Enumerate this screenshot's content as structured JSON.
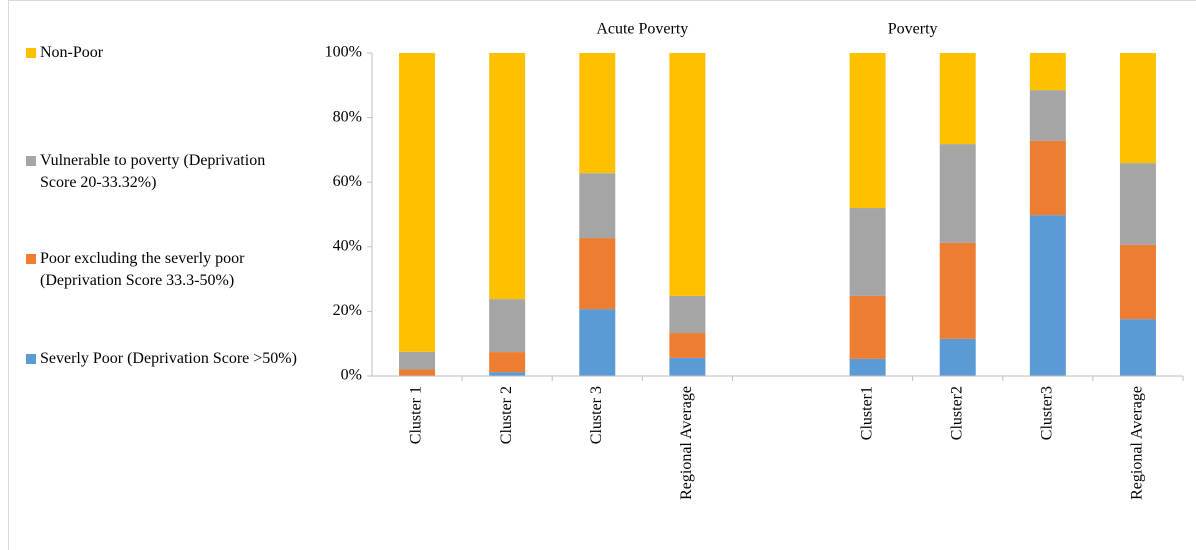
{
  "chart_data": {
    "type": "stacked_bar",
    "annotations": [
      {
        "text": "Acute Poverty",
        "category_index": 2.5
      },
      {
        "text": "Poverty",
        "category_index": 5.5
      }
    ],
    "categories": [
      "Cluster 1",
      "Cluster 2",
      "Cluster 3",
      "Regional Average",
      null,
      "Cluster1",
      "Cluster2",
      "Cluster3",
      "Regional Average"
    ],
    "series": [
      {
        "name": "Severly Poor (Deprivation Score >50%)",
        "color": "#5b9bd5",
        "values": [
          0,
          1.2,
          20.7,
          5.6,
          null,
          5.3,
          11.5,
          49.8,
          17.6
        ]
      },
      {
        "name": "Poor excluding the severly poor (Deprivation Score 33.3-50%)",
        "color": "#ed7d31",
        "values": [
          2,
          6.2,
          22,
          7.7,
          null,
          19.5,
          29.7,
          23,
          23
        ]
      },
      {
        "name": "Vulnerable to poverty (Deprivation Score 20-33.32%)",
        "color": "#a5a5a5",
        "values": [
          5.5,
          16.4,
          20.1,
          11.5,
          null,
          27.2,
          30.6,
          15.7,
          25.3
        ]
      },
      {
        "name": "Non-Poor",
        "color": "#ffc000",
        "values": [
          92.5,
          76.2,
          37.2,
          75.2,
          null,
          48,
          28.2,
          11.5,
          34.1
        ]
      }
    ],
    "ylim": [
      0,
      100
    ],
    "yticks": [
      {
        "value": 0,
        "label": "0%"
      },
      {
        "value": 20,
        "label": "20%"
      },
      {
        "value": 40,
        "label": "40%"
      },
      {
        "value": 60,
        "label": "60%"
      },
      {
        "value": 80,
        "label": "80%"
      },
      {
        "value": 100,
        "label": "100%"
      }
    ],
    "grid": false,
    "legend": "left"
  }
}
